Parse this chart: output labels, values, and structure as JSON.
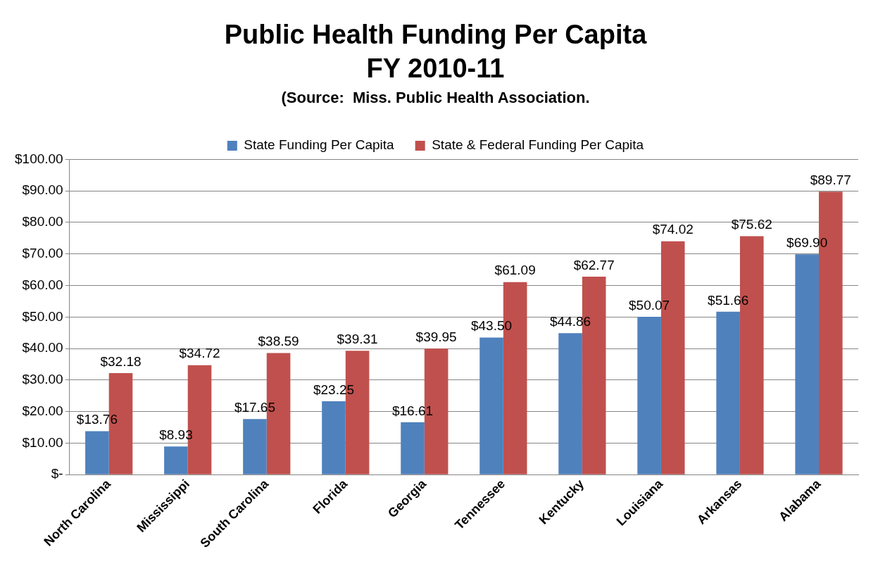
{
  "chart_data": {
    "type": "bar",
    "title": "Public Health Funding Per Capita\nFY 2010-11",
    "subtitle": "(Source:  Miss. Public Health Association.",
    "categories": [
      "North Carolina",
      "Mississippi",
      "South Carolina",
      "Florida",
      "Georgia",
      "Tennessee",
      "Kentucky",
      "Louisiana",
      "Arkansas",
      "Alabama"
    ],
    "series": [
      {
        "name": "State Funding Per Capita",
        "color": "#4f81bd",
        "values": [
          13.76,
          8.93,
          17.65,
          23.25,
          16.61,
          43.5,
          44.86,
          50.07,
          51.66,
          69.9
        ],
        "value_labels": [
          "$13.76",
          "$8.93",
          "$17.65",
          "$23.25",
          "$16.61",
          "$43.50",
          "$44.86",
          "$50.07",
          "$51.66",
          "$69.90"
        ]
      },
      {
        "name": "State & Federal Funding Per Capita",
        "color": "#c0504d",
        "values": [
          32.18,
          34.72,
          38.59,
          39.31,
          39.95,
          61.09,
          62.77,
          74.02,
          75.62,
          89.77
        ],
        "value_labels": [
          "$32.18",
          "$34.72",
          "$38.59",
          "$39.31",
          "$39.95",
          "$61.09",
          "$62.77",
          "$74.02",
          "$75.62",
          "$89.77"
        ]
      }
    ],
    "ylim": [
      0,
      100
    ],
    "yticks": [
      {
        "value": 0,
        "label": "$-"
      },
      {
        "value": 10,
        "label": "$10.00"
      },
      {
        "value": 20,
        "label": "$20.00"
      },
      {
        "value": 30,
        "label": "$30.00"
      },
      {
        "value": 40,
        "label": "$40.00"
      },
      {
        "value": 50,
        "label": "$50.00"
      },
      {
        "value": 60,
        "label": "$60.00"
      },
      {
        "value": 70,
        "label": "$70.00"
      },
      {
        "value": 80,
        "label": "$80.00"
      },
      {
        "value": 90,
        "label": "$90.00"
      },
      {
        "value": 100,
        "label": "$100.00"
      }
    ],
    "grid": "y",
    "legend": "top"
  }
}
